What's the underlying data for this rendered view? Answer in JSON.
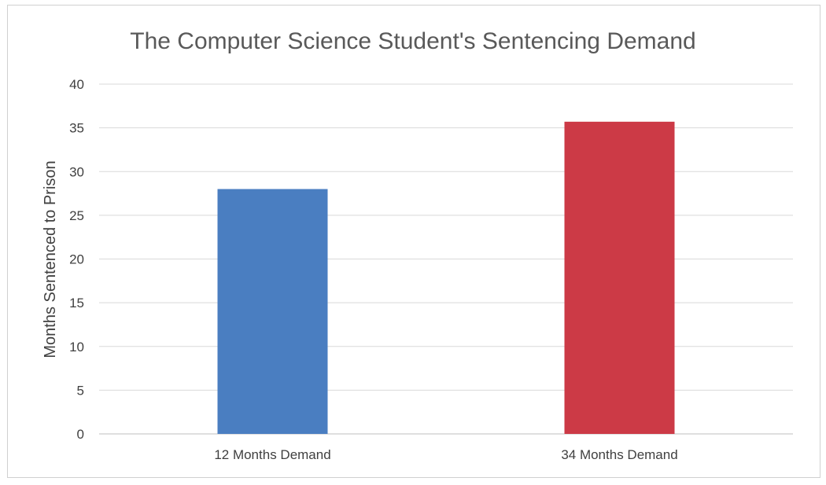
{
  "chart_data": {
    "type": "bar",
    "title": "The Computer Science Student's Sentencing Demand",
    "xlabel": "",
    "ylabel": "Months Sentenced to Prison",
    "categories": [
      "12 Months Demand",
      "34 Months Demand"
    ],
    "values": [
      28,
      35.7
    ],
    "colors": [
      "#4a7ec1",
      "#cc3a46"
    ],
    "ylim": [
      0,
      40
    ],
    "yticks": [
      0,
      5,
      10,
      15,
      20,
      25,
      30,
      35,
      40
    ],
    "grid": true,
    "legend": "none"
  }
}
